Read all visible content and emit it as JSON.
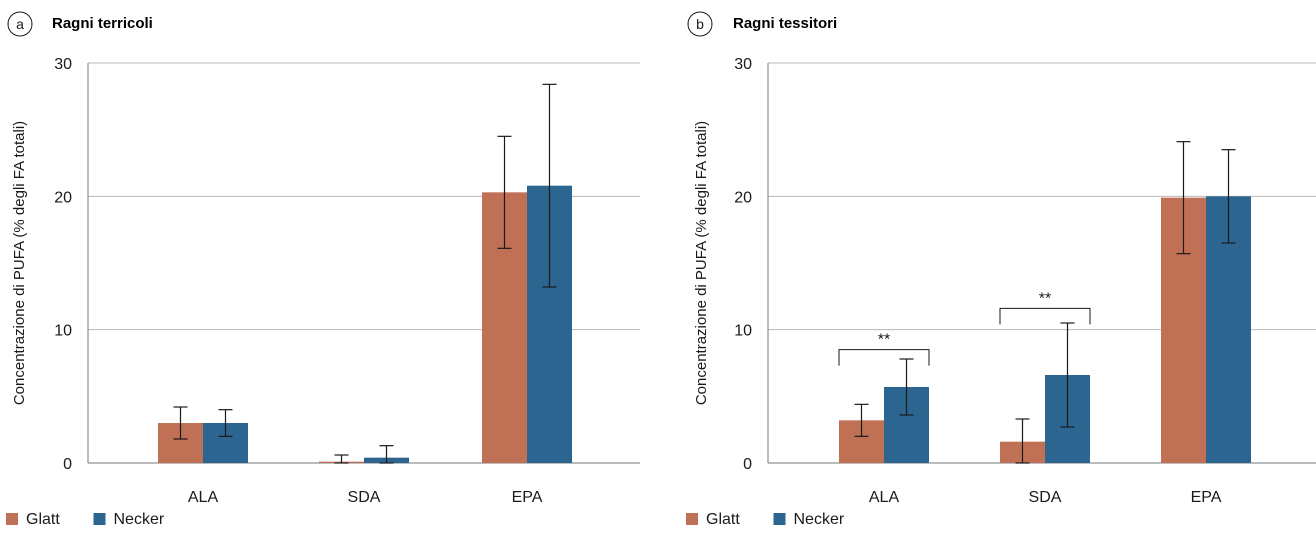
{
  "chart_data": [
    {
      "type": "bar",
      "panel_label": "a",
      "title": "Ragni terricoli",
      "ylabel": "Concentrazione di PUFA (% degli FA totali)",
      "xlabel": "",
      "ylim": [
        0,
        30
      ],
      "yticks": [
        0,
        10,
        20,
        30
      ],
      "grid": true,
      "categories": [
        "ALA",
        "SDA",
        "EPA"
      ],
      "series": [
        {
          "name": "Glatt",
          "color": "#c07055",
          "values": [
            3.0,
            0.1,
            20.3
          ],
          "errors": [
            1.2,
            0.5,
            4.2
          ]
        },
        {
          "name": "Necker",
          "color": "#2b6590",
          "values": [
            3.0,
            0.4,
            20.8
          ],
          "errors": [
            1.0,
            0.9,
            7.6
          ]
        }
      ],
      "annotations": [],
      "legend": "bottom-left"
    },
    {
      "type": "bar",
      "panel_label": "b",
      "title": "Ragni tessitori",
      "ylabel": "Concentrazione di PUFA (% degli FA totali)",
      "xlabel": "",
      "ylim": [
        0,
        30
      ],
      "yticks": [
        0,
        10,
        20,
        30
      ],
      "grid": true,
      "categories": [
        "ALA",
        "SDA",
        "EPA"
      ],
      "series": [
        {
          "name": "Glatt",
          "color": "#c07055",
          "values": [
            3.2,
            1.6,
            19.9
          ],
          "errors": [
            1.2,
            1.7,
            4.2
          ]
        },
        {
          "name": "Necker",
          "color": "#2b6590",
          "values": [
            5.7,
            6.6,
            20.0
          ],
          "errors": [
            2.1,
            3.9,
            3.5
          ]
        }
      ],
      "annotations": [
        {
          "category": "ALA",
          "text": "**",
          "y": 8.5
        },
        {
          "category": "SDA",
          "text": "**",
          "y": 11.6
        }
      ],
      "legend": "bottom-left"
    }
  ]
}
